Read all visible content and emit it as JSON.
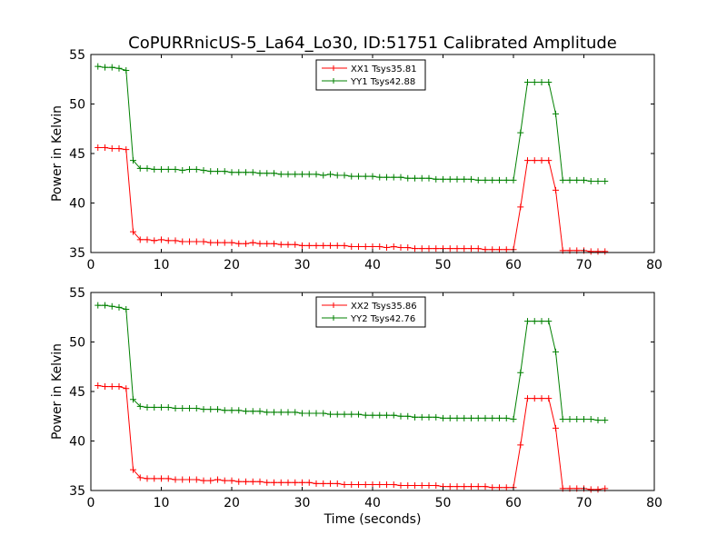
{
  "figure": {
    "title": "CoPURRnicUS-5_La64_Lo30, ID:51751 Calibrated Amplitude",
    "background": "#ffffff"
  },
  "chart_data": [
    {
      "type": "line",
      "title": "CoPURRnicUS-5_La64_Lo30, ID:51751 Calibrated Amplitude",
      "xlabel": "",
      "ylabel": "Power in Kelvin",
      "xlim": [
        0,
        80
      ],
      "ylim": [
        35,
        55
      ],
      "xticks": [
        0,
        10,
        20,
        30,
        40,
        50,
        60,
        70,
        80
      ],
      "yticks": [
        35,
        40,
        45,
        50,
        55
      ],
      "grid": false,
      "legend_position": "top-center",
      "marker": "plus",
      "x": [
        1,
        2,
        3,
        4,
        5,
        6,
        7,
        8,
        9,
        10,
        11,
        12,
        13,
        14,
        15,
        16,
        17,
        18,
        19,
        20,
        21,
        22,
        23,
        24,
        25,
        26,
        27,
        28,
        29,
        30,
        31,
        32,
        33,
        34,
        35,
        36,
        37,
        38,
        39,
        40,
        41,
        42,
        43,
        44,
        45,
        46,
        47,
        48,
        49,
        50,
        51,
        52,
        53,
        54,
        55,
        56,
        57,
        58,
        59,
        60,
        61,
        62,
        63,
        64,
        65,
        66,
        67,
        68,
        69,
        70,
        71,
        72,
        73
      ],
      "series": [
        {
          "name": "XX1 Tsys35.81",
          "color": "#ff0000",
          "values": [
            45.6,
            45.6,
            45.5,
            45.5,
            45.4,
            37.1,
            36.3,
            36.3,
            36.2,
            36.3,
            36.2,
            36.2,
            36.1,
            36.1,
            36.1,
            36.1,
            36.0,
            36.0,
            36.0,
            36.0,
            35.9,
            35.9,
            36.0,
            35.9,
            35.9,
            35.9,
            35.8,
            35.8,
            35.8,
            35.7,
            35.7,
            35.7,
            35.7,
            35.7,
            35.7,
            35.7,
            35.6,
            35.6,
            35.6,
            35.6,
            35.6,
            35.5,
            35.6,
            35.5,
            35.5,
            35.4,
            35.4,
            35.4,
            35.4,
            35.4,
            35.4,
            35.4,
            35.4,
            35.4,
            35.4,
            35.3,
            35.3,
            35.3,
            35.3,
            35.3,
            39.6,
            44.3,
            44.3,
            44.3,
            44.3,
            41.3,
            35.2,
            35.2,
            35.2,
            35.2,
            35.1,
            35.1,
            35.1
          ]
        },
        {
          "name": "YY1 Tsys42.88",
          "color": "#008000",
          "values": [
            53.8,
            53.7,
            53.7,
            53.6,
            53.4,
            44.3,
            43.5,
            43.5,
            43.4,
            43.4,
            43.4,
            43.4,
            43.3,
            43.4,
            43.4,
            43.3,
            43.2,
            43.2,
            43.2,
            43.1,
            43.1,
            43.1,
            43.1,
            43.0,
            43.0,
            43.0,
            42.9,
            42.9,
            42.9,
            42.9,
            42.9,
            42.9,
            42.8,
            42.9,
            42.8,
            42.8,
            42.7,
            42.7,
            42.7,
            42.7,
            42.6,
            42.6,
            42.6,
            42.6,
            42.5,
            42.5,
            42.5,
            42.5,
            42.4,
            42.4,
            42.4,
            42.4,
            42.4,
            42.4,
            42.3,
            42.3,
            42.3,
            42.3,
            42.3,
            42.3,
            47.1,
            52.2,
            52.2,
            52.2,
            52.2,
            49.0,
            42.3,
            42.3,
            42.3,
            42.3,
            42.2,
            42.2,
            42.2
          ]
        }
      ]
    },
    {
      "type": "line",
      "title": "",
      "xlabel": "Time (seconds)",
      "ylabel": "Power in Kelvin",
      "xlim": [
        0,
        80
      ],
      "ylim": [
        35,
        55
      ],
      "xticks": [
        0,
        10,
        20,
        30,
        40,
        50,
        60,
        70,
        80
      ],
      "yticks": [
        35,
        40,
        45,
        50,
        55
      ],
      "grid": false,
      "legend_position": "top-center",
      "marker": "plus",
      "x": [
        1,
        2,
        3,
        4,
        5,
        6,
        7,
        8,
        9,
        10,
        11,
        12,
        13,
        14,
        15,
        16,
        17,
        18,
        19,
        20,
        21,
        22,
        23,
        24,
        25,
        26,
        27,
        28,
        29,
        30,
        31,
        32,
        33,
        34,
        35,
        36,
        37,
        38,
        39,
        40,
        41,
        42,
        43,
        44,
        45,
        46,
        47,
        48,
        49,
        50,
        51,
        52,
        53,
        54,
        55,
        56,
        57,
        58,
        59,
        60,
        61,
        62,
        63,
        64,
        65,
        66,
        67,
        68,
        69,
        70,
        71,
        72,
        73
      ],
      "series": [
        {
          "name": "XX2 Tsys35.86",
          "color": "#ff0000",
          "values": [
            45.6,
            45.5,
            45.5,
            45.5,
            45.3,
            37.1,
            36.3,
            36.2,
            36.2,
            36.2,
            36.2,
            36.1,
            36.1,
            36.1,
            36.1,
            36.0,
            36.0,
            36.1,
            36.0,
            36.0,
            35.9,
            35.9,
            35.9,
            35.9,
            35.8,
            35.8,
            35.8,
            35.8,
            35.8,
            35.8,
            35.8,
            35.7,
            35.7,
            35.7,
            35.7,
            35.6,
            35.6,
            35.6,
            35.6,
            35.6,
            35.6,
            35.6,
            35.6,
            35.5,
            35.5,
            35.5,
            35.5,
            35.5,
            35.5,
            35.4,
            35.4,
            35.4,
            35.4,
            35.4,
            35.4,
            35.4,
            35.3,
            35.3,
            35.3,
            35.3,
            39.6,
            44.3,
            44.3,
            44.3,
            44.3,
            41.3,
            35.2,
            35.2,
            35.2,
            35.2,
            35.1,
            35.1,
            35.2
          ]
        },
        {
          "name": "YY2 Tsys42.76",
          "color": "#008000",
          "values": [
            53.7,
            53.7,
            53.6,
            53.5,
            53.3,
            44.2,
            43.5,
            43.4,
            43.4,
            43.4,
            43.4,
            43.3,
            43.3,
            43.3,
            43.3,
            43.2,
            43.2,
            43.2,
            43.1,
            43.1,
            43.1,
            43.0,
            43.0,
            43.0,
            42.9,
            42.9,
            42.9,
            42.9,
            42.9,
            42.8,
            42.8,
            42.8,
            42.8,
            42.7,
            42.7,
            42.7,
            42.7,
            42.7,
            42.6,
            42.6,
            42.6,
            42.6,
            42.6,
            42.5,
            42.5,
            42.4,
            42.4,
            42.4,
            42.4,
            42.3,
            42.3,
            42.3,
            42.3,
            42.3,
            42.3,
            42.3,
            42.3,
            42.3,
            42.3,
            42.2,
            46.9,
            52.1,
            52.1,
            52.1,
            52.1,
            49.0,
            42.2,
            42.2,
            42.2,
            42.2,
            42.2,
            42.1,
            42.1
          ]
        }
      ]
    }
  ]
}
